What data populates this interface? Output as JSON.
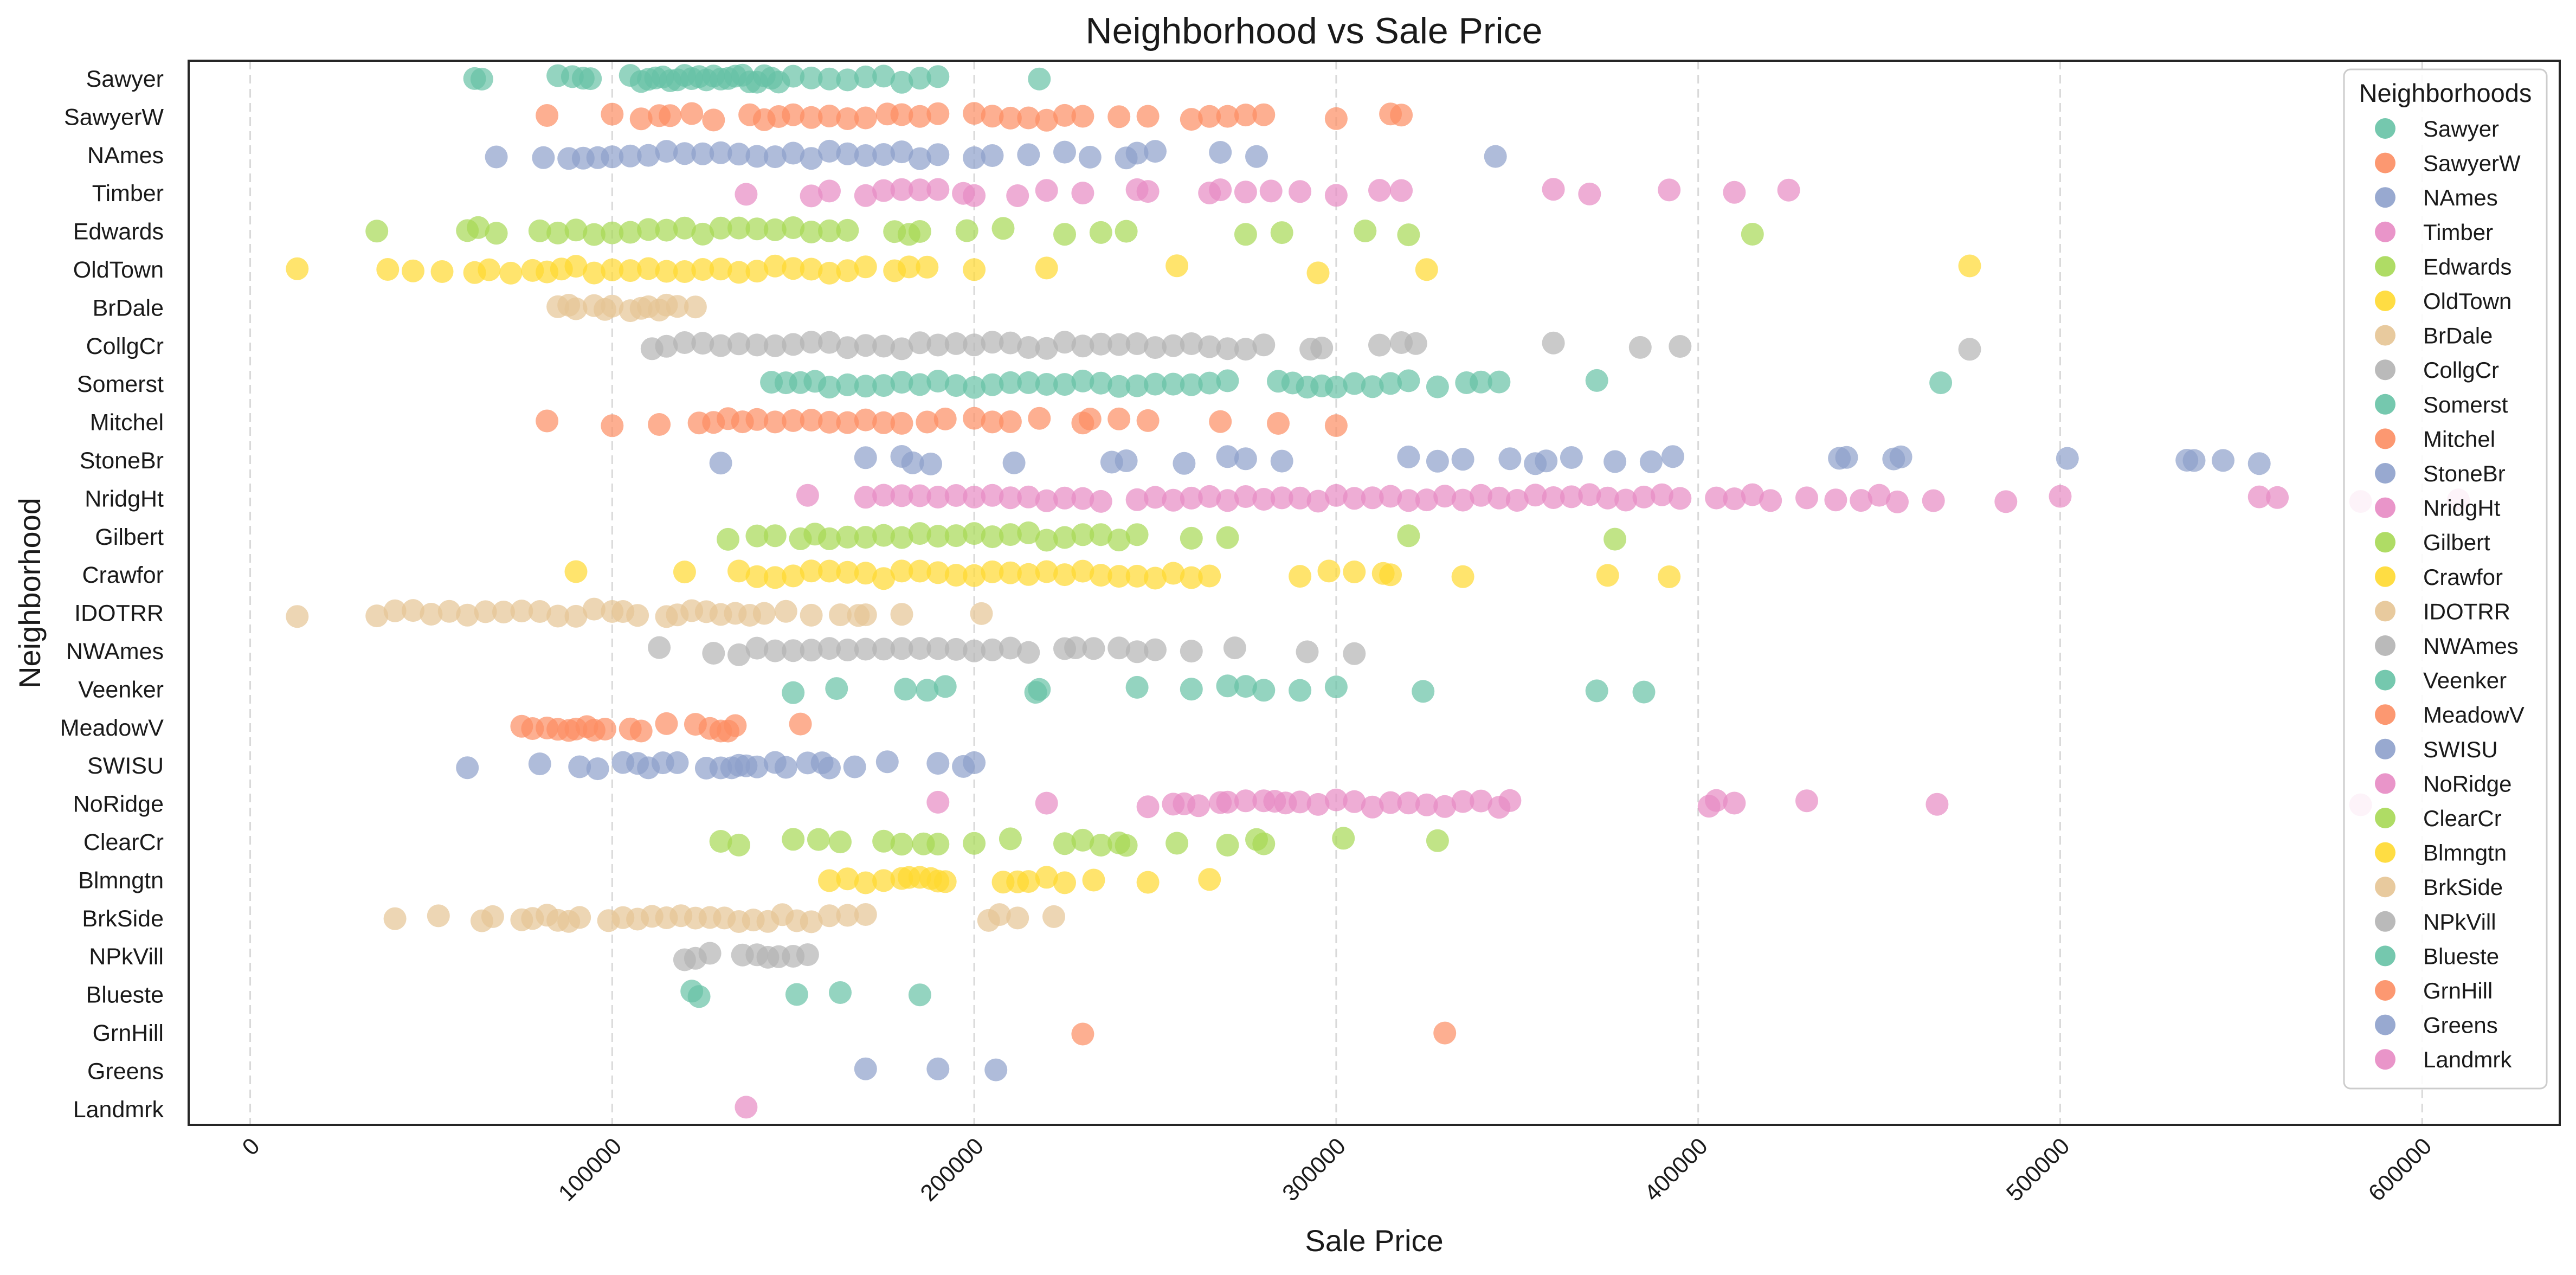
{
  "chart_data": {
    "type": "scatter",
    "title": "Neighborhood vs Sale Price",
    "xlabel": "Sale Price",
    "ylabel": "Neighborhood",
    "xlim": [
      -17000,
      638000
    ],
    "x_ticks": [
      0,
      100000,
      200000,
      300000,
      400000,
      500000,
      600000
    ],
    "x_tick_rotation": -45,
    "grid": "vertical dashed",
    "legend_title": "Neighborhoods",
    "legend_position": "top-right",
    "categories": [
      "Sawyer",
      "SawyerW",
      "NAmes",
      "Timber",
      "Edwards",
      "OldTown",
      "BrDale",
      "CollgCr",
      "Somerst",
      "Mitchel",
      "StoneBr",
      "NridgHt",
      "Gilbert",
      "Crawfor",
      "IDOTRR",
      "NWAmes",
      "Veenker",
      "MeadowV",
      "SWISU",
      "NoRidge",
      "ClearCr",
      "Blmngtn",
      "BrkSide",
      "NPkVill",
      "Blueste",
      "GrnHill",
      "Greens",
      "Landmrk"
    ],
    "series": [
      {
        "name": "Sawyer",
        "color": "#66c2a5",
        "x": [
          62000,
          64000,
          85000,
          89000,
          92000,
          94000,
          105000,
          108000,
          110000,
          112000,
          114000,
          116000,
          118000,
          120000,
          122000,
          124000,
          126000,
          128000,
          130000,
          132000,
          134000,
          136000,
          138000,
          140000,
          142000,
          144000,
          146000,
          150000,
          155000,
          160000,
          165000,
          170000,
          175000,
          180000,
          185000,
          190000,
          218000
        ]
      },
      {
        "name": "SawyerW",
        "color": "#fc8d62",
        "x": [
          82000,
          100000,
          108000,
          113000,
          116000,
          122000,
          128000,
          138000,
          142000,
          146000,
          150000,
          155000,
          160000,
          165000,
          170000,
          176000,
          180000,
          185000,
          190000,
          200000,
          205000,
          210000,
          215000,
          220000,
          225000,
          230000,
          240000,
          248000,
          260000,
          265000,
          270000,
          275000,
          280000,
          300000,
          315000,
          318000
        ]
      },
      {
        "name": "NAmes",
        "color": "#8da0cb",
        "x": [
          68000,
          81000,
          88000,
          92000,
          96000,
          100000,
          105000,
          110000,
          115000,
          120000,
          125000,
          130000,
          135000,
          140000,
          145000,
          150000,
          155000,
          160000,
          165000,
          170000,
          175000,
          180000,
          185000,
          190000,
          200000,
          205000,
          215000,
          225000,
          232000,
          242000,
          245000,
          250000,
          268000,
          278000,
          344000
        ]
      },
      {
        "name": "Timber",
        "color": "#e78ac3",
        "x": [
          137000,
          155000,
          160000,
          170000,
          175000,
          180000,
          185000,
          190000,
          197000,
          200000,
          212000,
          220000,
          230000,
          245000,
          248000,
          265000,
          268000,
          275000,
          282000,
          290000,
          300000,
          312000,
          318000,
          360000,
          370000,
          392000,
          410000,
          425000
        ]
      },
      {
        "name": "Edwards",
        "color": "#a6d854",
        "x": [
          35000,
          60000,
          63000,
          68000,
          80000,
          85000,
          90000,
          95000,
          100000,
          105000,
          110000,
          115000,
          120000,
          125000,
          130000,
          135000,
          140000,
          145000,
          150000,
          155000,
          160000,
          165000,
          178000,
          182000,
          185000,
          198000,
          208000,
          225000,
          235000,
          242000,
          275000,
          285000,
          308000,
          320000,
          415000
        ]
      },
      {
        "name": "OldTown",
        "color": "#ffd92f",
        "x": [
          13000,
          38000,
          45000,
          53000,
          62000,
          66000,
          72000,
          78000,
          82000,
          86000,
          90000,
          95000,
          100000,
          105000,
          110000,
          115000,
          120000,
          125000,
          130000,
          135000,
          140000,
          145000,
          150000,
          155000,
          160000,
          165000,
          170000,
          178000,
          182000,
          187000,
          200000,
          220000,
          256000,
          295000,
          325000,
          475000
        ]
      },
      {
        "name": "BrDale",
        "color": "#e5c494",
        "x": [
          85000,
          88000,
          90000,
          95000,
          98000,
          100000,
          105000,
          108000,
          110000,
          113000,
          115000,
          118000,
          123000
        ]
      },
      {
        "name": "CollgCr",
        "color": "#b3b3b3",
        "x": [
          111000,
          115000,
          120000,
          125000,
          130000,
          135000,
          140000,
          145000,
          150000,
          155000,
          160000,
          165000,
          170000,
          175000,
          180000,
          185000,
          190000,
          195000,
          200000,
          205000,
          210000,
          215000,
          220000,
          225000,
          230000,
          235000,
          240000,
          245000,
          250000,
          255000,
          260000,
          265000,
          270000,
          275000,
          280000,
          293000,
          296000,
          312000,
          318000,
          322000,
          360000,
          384000,
          395000,
          475000
        ]
      },
      {
        "name": "Somerst",
        "color": "#66c2a5",
        "x": [
          144000,
          148000,
          152000,
          156000,
          160000,
          165000,
          170000,
          175000,
          180000,
          185000,
          190000,
          195000,
          200000,
          205000,
          210000,
          215000,
          220000,
          225000,
          230000,
          235000,
          240000,
          245000,
          250000,
          255000,
          260000,
          265000,
          270000,
          284000,
          288000,
          292000,
          296000,
          300000,
          305000,
          310000,
          315000,
          320000,
          328000,
          336000,
          340000,
          345000,
          372000,
          467000
        ]
      },
      {
        "name": "Mitchel",
        "color": "#fc8d62",
        "x": [
          82000,
          100000,
          113000,
          124000,
          128000,
          132000,
          136000,
          140000,
          145000,
          150000,
          155000,
          160000,
          165000,
          170000,
          175000,
          180000,
          187000,
          192000,
          200000,
          205000,
          210000,
          218000,
          230000,
          232000,
          240000,
          248000,
          268000,
          284000,
          300000
        ]
      },
      {
        "name": "StoneBr",
        "color": "#8da0cb",
        "x": [
          130000,
          170000,
          180000,
          183000,
          188000,
          211000,
          238000,
          242000,
          258000,
          270000,
          275000,
          285000,
          320000,
          328000,
          335000,
          348000,
          355000,
          358000,
          365000,
          377000,
          387000,
          393000,
          439000,
          441000,
          454000,
          456000,
          502000,
          535000,
          537000,
          545000,
          555000
        ]
      },
      {
        "name": "NridgHt",
        "color": "#e78ac3",
        "x": [
          154000,
          170000,
          175000,
          180000,
          185000,
          190000,
          195000,
          200000,
          205000,
          210000,
          215000,
          220000,
          225000,
          230000,
          235000,
          245000,
          250000,
          255000,
          260000,
          265000,
          270000,
          275000,
          280000,
          285000,
          290000,
          295000,
          300000,
          305000,
          310000,
          315000,
          320000,
          325000,
          330000,
          335000,
          340000,
          345000,
          350000,
          355000,
          360000,
          365000,
          370000,
          375000,
          380000,
          385000,
          390000,
          395000,
          405000,
          410000,
          415000,
          420000,
          430000,
          438000,
          445000,
          450000,
          455000,
          465000,
          485000,
          500000,
          555000,
          560000,
          583000,
          610000
        ]
      },
      {
        "name": "Gilbert",
        "color": "#a6d854",
        "x": [
          132000,
          140000,
          145000,
          152000,
          156000,
          160000,
          165000,
          170000,
          175000,
          180000,
          185000,
          190000,
          195000,
          200000,
          205000,
          210000,
          215000,
          220000,
          225000,
          230000,
          235000,
          240000,
          245000,
          260000,
          270000,
          320000,
          377000
        ]
      },
      {
        "name": "Crawfor",
        "color": "#ffd92f",
        "x": [
          90000,
          120000,
          135000,
          140000,
          145000,
          150000,
          155000,
          160000,
          165000,
          170000,
          175000,
          180000,
          185000,
          190000,
          195000,
          200000,
          205000,
          210000,
          215000,
          220000,
          225000,
          230000,
          235000,
          240000,
          245000,
          250000,
          255000,
          260000,
          265000,
          290000,
          298000,
          305000,
          313000,
          315000,
          335000,
          375000,
          392000
        ]
      },
      {
        "name": "IDOTRR",
        "color": "#e5c494",
        "x": [
          13000,
          35000,
          40000,
          45000,
          50000,
          55000,
          60000,
          65000,
          70000,
          75000,
          80000,
          85000,
          90000,
          95000,
          100000,
          103000,
          107000,
          115000,
          118000,
          122000,
          126000,
          130000,
          134000,
          138000,
          142000,
          148000,
          155000,
          163000,
          168000,
          170000,
          180000,
          202000
        ]
      },
      {
        "name": "NWAmes",
        "color": "#b3b3b3",
        "x": [
          113000,
          128000,
          135000,
          140000,
          145000,
          150000,
          155000,
          160000,
          165000,
          170000,
          175000,
          180000,
          185000,
          190000,
          195000,
          200000,
          205000,
          210000,
          215000,
          225000,
          228000,
          233000,
          240000,
          245000,
          250000,
          260000,
          272000,
          292000,
          305000
        ]
      },
      {
        "name": "Veenker",
        "color": "#66c2a5",
        "x": [
          150000,
          162000,
          181000,
          187000,
          192000,
          217000,
          218000,
          245000,
          260000,
          270000,
          275000,
          280000,
          290000,
          300000,
          324000,
          372000,
          385000
        ]
      },
      {
        "name": "MeadowV",
        "color": "#fc8d62",
        "x": [
          75000,
          78000,
          82000,
          85000,
          88000,
          90000,
          93000,
          95000,
          98000,
          105000,
          108000,
          115000,
          123000,
          127000,
          130000,
          132000,
          134000,
          152000
        ]
      },
      {
        "name": "SWISU",
        "color": "#8da0cb",
        "x": [
          60000,
          80000,
          91000,
          96000,
          103000,
          107000,
          110000,
          114000,
          118000,
          126000,
          130000,
          133000,
          135000,
          137000,
          140000,
          145000,
          148000,
          154000,
          158000,
          160000,
          167000,
          176000,
          190000,
          197000,
          200000
        ]
      },
      {
        "name": "NoRidge",
        "color": "#e78ac3",
        "x": [
          190000,
          220000,
          248000,
          255000,
          258000,
          262000,
          268000,
          270000,
          275000,
          280000,
          283000,
          286000,
          290000,
          295000,
          300000,
          305000,
          310000,
          315000,
          320000,
          325000,
          330000,
          335000,
          340000,
          345000,
          348000,
          403000,
          405000,
          410000,
          430000,
          466000,
          583000
        ]
      },
      {
        "name": "ClearCr",
        "color": "#a6d854",
        "x": [
          130000,
          135000,
          150000,
          157000,
          163000,
          175000,
          180000,
          186000,
          190000,
          200000,
          210000,
          225000,
          230000,
          235000,
          240000,
          242000,
          256000,
          270000,
          278000,
          280000,
          302000,
          328000
        ]
      },
      {
        "name": "Blmngtn",
        "color": "#ffd92f",
        "x": [
          160000,
          165000,
          170000,
          175000,
          180000,
          182000,
          185000,
          188000,
          190000,
          192000,
          208000,
          212000,
          215000,
          220000,
          225000,
          233000,
          248000,
          265000
        ]
      },
      {
        "name": "BrkSide",
        "color": "#e5c494",
        "x": [
          40000,
          52000,
          64000,
          67000,
          75000,
          78000,
          82000,
          85000,
          88000,
          91000,
          99000,
          103000,
          107000,
          111000,
          115000,
          119000,
          123000,
          127000,
          131000,
          135000,
          139000,
          143000,
          147000,
          151000,
          155000,
          160000,
          165000,
          170000,
          204000,
          207000,
          212000,
          222000
        ]
      },
      {
        "name": "NPkVill",
        "color": "#b3b3b3",
        "x": [
          120000,
          123000,
          127000,
          136000,
          140000,
          143000,
          146000,
          150000,
          154000
        ]
      },
      {
        "name": "Blueste",
        "color": "#66c2a5",
        "x": [
          122000,
          124000,
          151000,
          163000,
          185000
        ]
      },
      {
        "name": "GrnHill",
        "color": "#fc8d62",
        "x": [
          230000,
          330000
        ]
      },
      {
        "name": "Greens",
        "color": "#8da0cb",
        "x": [
          170000,
          190000,
          206000
        ]
      },
      {
        "name": "Landmrk",
        "color": "#e78ac3",
        "x": [
          137000
        ]
      }
    ]
  }
}
